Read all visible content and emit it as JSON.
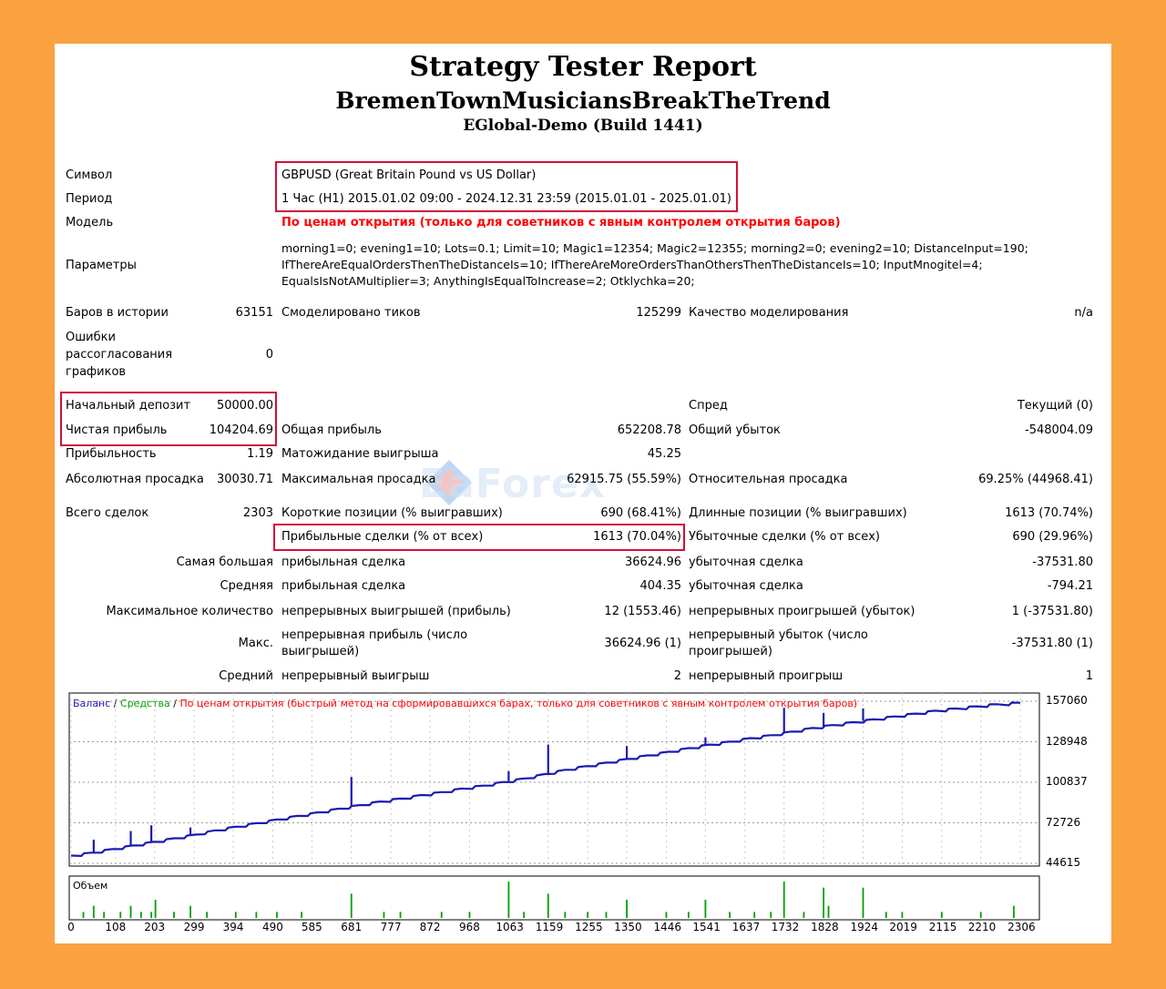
{
  "header": {
    "title": "Strategy Tester Report",
    "expert": "BremenTownMusiciansBreakTheTrend",
    "server": "EGlobal-Demo (Build 1441)"
  },
  "info": {
    "symbol_label": "Символ",
    "symbol_value": "GBPUSD (Great Britain Pound vs US Dollar)",
    "period_label": "Период",
    "period_value": "1 Час (H1) 2015.01.02 09:00 - 2024.12.31 23:59 (2015.01.01 - 2025.01.01)",
    "model_label": "Модель",
    "model_value": "По ценам открытия (только для советников с явным контролем открытия баров)",
    "params_label": "Параметры",
    "params_line1": "morning1=0; evening1=10; Lots=0.1; Limit=10; Magic1=12354; Magic2=12355; morning2=0; evening2=10; DistanceInput=190;",
    "params_line2": "IfThereAreEqualOrdersThenTheDistanceIs=10; IfThereAreMoreOrdersThanOthersThenTheDistanceIs=10; InputMnogitel=4;",
    "params_line3": "EqualsIsNotAMultiplier=3; AnythingIsEqualToIncrease=2; Otklychka=20;"
  },
  "stats": {
    "bars_label": "Баров в истории",
    "bars_value": "63151",
    "ticks_label": "Смоделировано тиков",
    "ticks_value": "125299",
    "quality_label": "Качество моделирования",
    "quality_value": "n/a",
    "errors_l1": "Ошибки",
    "errors_l2": "рассогласования",
    "errors_l3": "графиков",
    "errors_value": "0",
    "deposit_label": "Начальный депозит",
    "deposit_value": "50000.00",
    "spread_label": "Спред",
    "spread_value": "Текущий (0)",
    "netprofit_label": "Чистая прибыль",
    "netprofit_value": "104204.69",
    "grossprofit_label": "Общая прибыль",
    "grossprofit_value": "652208.78",
    "grossloss_label": "Общий убыток",
    "grossloss_value": "-548004.09",
    "pf_label": "Прибыльность",
    "pf_value": "1.19",
    "expected_label": "Матожидание выигрыша",
    "expected_value": "45.25",
    "absdd_label": "Абсолютная просадка",
    "absdd_value": "30030.71",
    "maxdd_label": "Максимальная просадка",
    "maxdd_value": "62915.75 (55.59%)",
    "reldd_label": "Относительная просадка",
    "reldd_value": "69.25% (44968.41)",
    "trades_label": "Всего сделок",
    "trades_value": "2303",
    "short_label": "Короткие позиции (% выигравших)",
    "short_value": "690 (68.41%)",
    "long_label": "Длинные позиции (% выигравших)",
    "long_value": "1613 (70.74%)",
    "profit_trades_label": "Прибыльные сделки (% от всех)",
    "profit_trades_value": "1613 (70.04%)",
    "loss_trades_label": "Убыточные сделки (% от всех)",
    "loss_trades_value": "690 (29.96%)",
    "largest_label": "Самая большая",
    "largest_profit_label": "прибыльная сделка",
    "largest_profit_value": "36624.96",
    "largest_loss_label": "убыточная сделка",
    "largest_loss_value": "-37531.80",
    "average_label": "Средняя",
    "average_profit_label": "прибыльная сделка",
    "average_profit_value": "404.35",
    "average_loss_label": "убыточная сделка",
    "average_loss_value": "-794.21",
    "maxcount_label": "Максимальное количество",
    "maxcount_wins_label": "непрерывных выигрышей (прибыль)",
    "maxcount_wins_value": "12 (1553.46)",
    "maxcount_losses_label": "непрерывных проигрышей (убыток)",
    "maxcount_losses_value": "1 (-37531.80)",
    "max_label": "Макс.",
    "max_profit_l1": "непрерывная прибыль (число",
    "max_profit_l2": "выигрышей)",
    "max_profit_value": "36624.96 (1)",
    "max_loss_l1": "непрерывный убыток (число",
    "max_loss_l2": "проигрышей)",
    "max_loss_value": "-37531.80 (1)",
    "avg_label": "Средний",
    "avg_win_label": "непрерывный выигрыш",
    "avg_win_value": "2",
    "avg_loss_label": "непрерывный проигрыш",
    "avg_loss_value": "1"
  },
  "chart_legend": {
    "balance": "Баланс",
    "sep1": " / ",
    "equity": "Средства",
    "sep2": " / ",
    "mode": "По ценам открытия (быстрый метод на сформировавшихся барах, только для советников с явным контролем открытия баров)"
  },
  "volume_label": "Объем",
  "watermark": "EaForex",
  "colors": {
    "balance": "#1a1ab0",
    "equity": "#00a000",
    "frame": "#d0103a",
    "background": "#F9A23F"
  },
  "chart_data": {
    "type": "line",
    "y_ticks": [
      "157060",
      "128948",
      "100837",
      "72726",
      "44615"
    ],
    "x_ticks": [
      "0",
      "108",
      "203",
      "299",
      "394",
      "490",
      "585",
      "681",
      "777",
      "872",
      "968",
      "1063",
      "1159",
      "1255",
      "1350",
      "1446",
      "1541",
      "1637",
      "1732",
      "1828",
      "1924",
      "2019",
      "2115",
      "2210",
      "2306"
    ],
    "ylim": [
      44615,
      157060
    ],
    "xlim": [
      0,
      2350
    ],
    "series": [
      {
        "name": "Баланс",
        "x": [
          0,
          50,
          100,
          150,
          200,
          250,
          300,
          350,
          400,
          450,
          500,
          550,
          600,
          650,
          700,
          750,
          800,
          850,
          900,
          950,
          1000,
          1050,
          1100,
          1150,
          1200,
          1250,
          1300,
          1350,
          1400,
          1450,
          1500,
          1550,
          1600,
          1650,
          1700,
          1750,
          1800,
          1850,
          1900,
          1950,
          2000,
          2050,
          2100,
          2150,
          2200,
          2250,
          2306
        ],
        "values": [
          50000,
          52000,
          54500,
          57000,
          59500,
          62000,
          64500,
          67500,
          70000,
          72500,
          75000,
          77500,
          80000,
          82500,
          85000,
          87500,
          89500,
          92000,
          94000,
          96500,
          98500,
          101000,
          103500,
          106500,
          109500,
          112000,
          114500,
          117000,
          119500,
          122000,
          124500,
          127000,
          129000,
          131500,
          133500,
          136000,
          138500,
          140500,
          142500,
          144500,
          146500,
          148500,
          150500,
          152000,
          153500,
          155000,
          156000
        ]
      }
    ],
    "balance_spikes": [
      {
        "x": 55,
        "value": 61000
      },
      {
        "x": 145,
        "value": 67000
      },
      {
        "x": 195,
        "value": 71000
      },
      {
        "x": 290,
        "value": 69500
      },
      {
        "x": 681,
        "value": 104500
      },
      {
        "x": 1063,
        "value": 108500
      },
      {
        "x": 1159,
        "value": 127000
      },
      {
        "x": 1350,
        "value": 126000
      },
      {
        "x": 1541,
        "value": 132000
      },
      {
        "x": 1732,
        "value": 152500
      },
      {
        "x": 1828,
        "value": 149000
      },
      {
        "x": 1924,
        "value": 152000
      }
    ],
    "volume": {
      "name": "Объем",
      "x": [
        30,
        55,
        80,
        120,
        145,
        170,
        195,
        205,
        250,
        290,
        330,
        400,
        450,
        500,
        560,
        681,
        760,
        800,
        900,
        968,
        1063,
        1100,
        1159,
        1200,
        1255,
        1300,
        1350,
        1446,
        1500,
        1541,
        1600,
        1660,
        1700,
        1732,
        1780,
        1828,
        1840,
        1924,
        1980,
        2019,
        2115,
        2210,
        2290
      ],
      "values": [
        1,
        2,
        1,
        1,
        2,
        1,
        1,
        3,
        1,
        2,
        1,
        1,
        1,
        1,
        1,
        4,
        1,
        1,
        1,
        1,
        6,
        1,
        4,
        1,
        1,
        1,
        3,
        1,
        1,
        3,
        1,
        1,
        1,
        6,
        1,
        5,
        2,
        5,
        1,
        1,
        1,
        1,
        2
      ]
    }
  }
}
